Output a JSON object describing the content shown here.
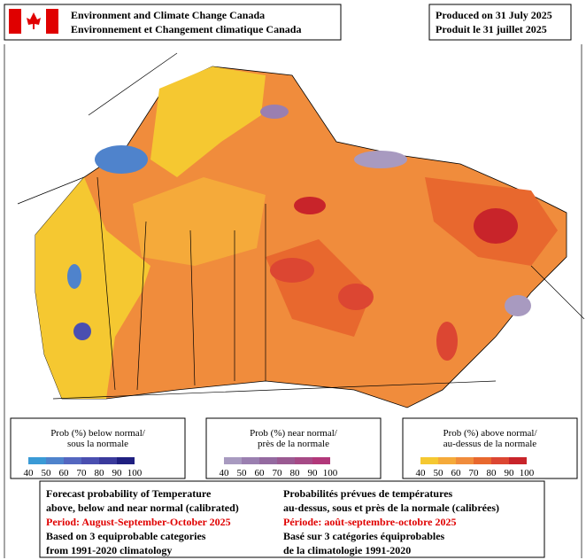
{
  "header": {
    "agency_en": "Environment and Climate Change Canada",
    "agency_fr": "Environnement et Changement climatique Canada",
    "produced_en": "Produced on 31 July 2025",
    "produced_fr": "Produit le 31 juillet 2025"
  },
  "legends": [
    {
      "title_en": "Prob (%) below normal/",
      "title_fr": "sous la normale",
      "ticks": [
        40,
        50,
        60,
        70,
        80,
        90,
        100
      ],
      "colors": [
        "#3a9ad6",
        "#4f83cc",
        "#5467c0",
        "#4a4fb0",
        "#3a3a9c",
        "#1f1f80"
      ]
    },
    {
      "title_en": "Prob (%) near normal/",
      "title_fr": "près de la normale",
      "ticks": [
        40,
        50,
        60,
        70,
        80,
        90,
        100
      ],
      "colors": [
        "#a89ac0",
        "#9a7fb0",
        "#946aa0",
        "#9a5a92",
        "#a64a86",
        "#b2387a"
      ]
    },
    {
      "title_en": "Prob (%) above normal/",
      "title_fr": "au-dessus de la normale",
      "ticks": [
        40,
        50,
        60,
        70,
        80,
        90,
        100
      ],
      "colors": [
        "#f5c831",
        "#f5aa3a",
        "#f08c3c",
        "#e8682e",
        "#dc4632",
        "#c8242a"
      ]
    }
  ],
  "footer": {
    "en": {
      "line1": "Forecast probability of Temperature",
      "line2": "above, below and near normal (calibrated)",
      "period": "Period: August-September-October 2025",
      "line4": "Based on 3 equiprobable categories",
      "line5": "from 1991-2020 climatology"
    },
    "fr": {
      "line1": "Probabilités prévues de températures",
      "line2": "au-dessus, sous et près de la normale (calibrées)",
      "period": "Période: août-septembre-octobre 2025",
      "line4": "Basé sur 3 catégories équiprobables",
      "line5": "de la climatologie 1991-2020"
    }
  }
}
